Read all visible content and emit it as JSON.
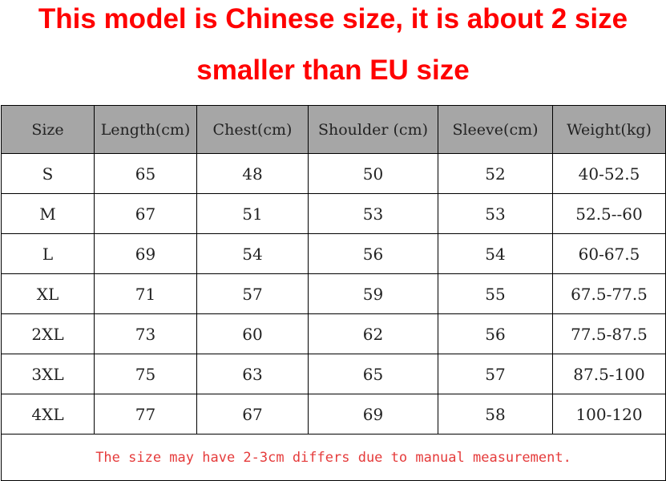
{
  "headline": {
    "line1": "This model is Chinese size, it is about 2 size",
    "line2": "smaller than EU size"
  },
  "table": {
    "headers": [
      "Size",
      "Length(cm)",
      "Chest(cm)",
      "Shoulder (cm)",
      "Sleeve(cm)",
      "Weight(kg)"
    ],
    "rows": [
      [
        "S",
        "65",
        "48",
        "50",
        "52",
        "40-52.5"
      ],
      [
        "M",
        "67",
        "51",
        "53",
        "53",
        "52.5--60"
      ],
      [
        "L",
        "69",
        "54",
        "56",
        "54",
        "60-67.5"
      ],
      [
        "XL",
        "71",
        "57",
        "59",
        "55",
        "67.5-77.5"
      ],
      [
        "2XL",
        "73",
        "60",
        "62",
        "56",
        "77.5-87.5"
      ],
      [
        "3XL",
        "75",
        "63",
        "65",
        "57",
        "87.5-100"
      ],
      [
        "4XL",
        "77",
        "67",
        "69",
        "58",
        "100-120"
      ]
    ],
    "note": "The size may have 2-3cm differs due to manual measurement."
  },
  "colors": {
    "headline": "#ff0000",
    "header_bg": "#a6a6a6",
    "note": "#e53b3b",
    "border": "#000000"
  }
}
